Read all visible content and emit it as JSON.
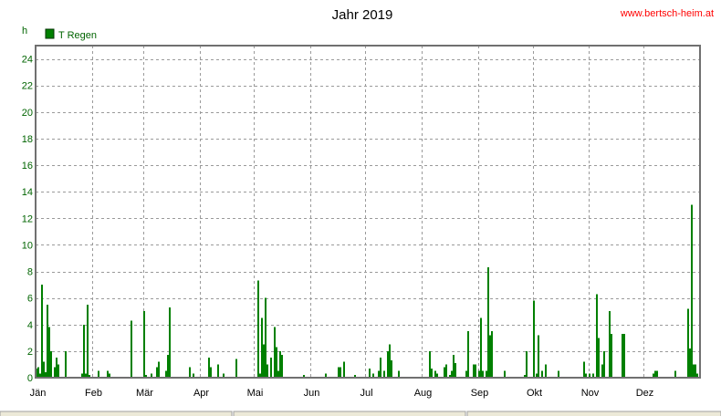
{
  "page": {
    "watermark": "www.bertsch-heim.at"
  },
  "chart_data": {
    "type": "bar",
    "title": "Jahr 2019",
    "ylabel": "h",
    "xlabel": "",
    "ylim": [
      0,
      25
    ],
    "yticks": [
      0,
      2,
      4,
      6,
      8,
      10,
      12,
      14,
      16,
      18,
      20,
      22,
      24
    ],
    "grid": true,
    "legend_position": "top-left",
    "x_unit": "day of year",
    "xlim": [
      1,
      365
    ],
    "months": [
      {
        "label": "Jän",
        "start_day": 1
      },
      {
        "label": "Feb",
        "start_day": 32
      },
      {
        "label": "Mär",
        "start_day": 60
      },
      {
        "label": "Apr",
        "start_day": 91
      },
      {
        "label": "Mai",
        "start_day": 121
      },
      {
        "label": "Jun",
        "start_day": 152
      },
      {
        "label": "Jul",
        "start_day": 182
      },
      {
        "label": "Aug",
        "start_day": 213
      },
      {
        "label": "Sep",
        "start_day": 244
      },
      {
        "label": "Okt",
        "start_day": 274
      },
      {
        "label": "Nov",
        "start_day": 305
      },
      {
        "label": "Dez",
        "start_day": 335
      }
    ],
    "colors": {
      "series": "#008000",
      "axis_text": "#006400",
      "frame": "#707070",
      "grid": "#9a9a9a"
    },
    "series": [
      {
        "name": "T Regen",
        "color": "#008000",
        "points": [
          [
            1,
            0.7
          ],
          [
            2,
            0.8
          ],
          [
            3,
            0.3
          ],
          [
            4,
            7.0
          ],
          [
            5,
            1.2
          ],
          [
            6,
            0.4
          ],
          [
            7,
            5.5
          ],
          [
            8,
            3.8
          ],
          [
            9,
            2.0
          ],
          [
            11,
            0.8
          ],
          [
            12,
            1.5
          ],
          [
            13,
            1.0
          ],
          [
            17,
            2.0
          ],
          [
            26,
            0.3
          ],
          [
            27,
            4.0
          ],
          [
            28,
            0.3
          ],
          [
            29,
            5.5
          ],
          [
            30,
            0.2
          ],
          [
            35,
            0.5
          ],
          [
            40,
            0.5
          ],
          [
            41,
            0.3
          ],
          [
            53,
            4.3
          ],
          [
            60,
            5.0
          ],
          [
            61,
            0.2
          ],
          [
            64,
            0.3
          ],
          [
            67,
            0.8
          ],
          [
            68,
            1.2
          ],
          [
            72,
            0.5
          ],
          [
            73,
            1.7
          ],
          [
            74,
            5.3
          ],
          [
            85,
            0.8
          ],
          [
            87,
            0.3
          ],
          [
            96,
            1.5
          ],
          [
            97,
            0.8
          ],
          [
            101,
            1.0
          ],
          [
            104,
            0.3
          ],
          [
            111,
            1.4
          ],
          [
            123,
            7.3
          ],
          [
            124,
            0.3
          ],
          [
            125,
            4.5
          ],
          [
            126,
            2.5
          ],
          [
            127,
            6.0
          ],
          [
            128,
            1.0
          ],
          [
            130,
            1.5
          ],
          [
            132,
            3.8
          ],
          [
            133,
            2.3
          ],
          [
            134,
            0.5
          ],
          [
            135,
            2.0
          ],
          [
            136,
            1.7
          ],
          [
            148,
            0.2
          ],
          [
            160,
            0.3
          ],
          [
            167,
            0.8
          ],
          [
            168,
            0.8
          ],
          [
            170,
            1.2
          ],
          [
            176,
            0.2
          ],
          [
            184,
            0.7
          ],
          [
            186,
            0.3
          ],
          [
            189,
            0.5
          ],
          [
            190,
            1.5
          ],
          [
            192,
            0.5
          ],
          [
            194,
            2.0
          ],
          [
            195,
            2.5
          ],
          [
            196,
            1.3
          ],
          [
            200,
            0.5
          ],
          [
            217,
            2.0
          ],
          [
            218,
            0.7
          ],
          [
            220,
            0.5
          ],
          [
            221,
            0.3
          ],
          [
            225,
            0.8
          ],
          [
            226,
            1.0
          ],
          [
            228,
            0.2
          ],
          [
            229,
            0.5
          ],
          [
            230,
            1.7
          ],
          [
            231,
            1.1
          ],
          [
            237,
            0.5
          ],
          [
            238,
            3.5
          ],
          [
            241,
            1.0
          ],
          [
            242,
            1.0
          ],
          [
            244,
            0.5
          ],
          [
            245,
            4.5
          ],
          [
            246,
            0.5
          ],
          [
            248,
            0.5
          ],
          [
            249,
            8.3
          ],
          [
            250,
            3.2
          ],
          [
            251,
            3.5
          ],
          [
            258,
            0.5
          ],
          [
            269,
            0.2
          ],
          [
            270,
            2.0
          ],
          [
            274,
            5.8
          ],
          [
            276,
            0.3
          ],
          [
            277,
            3.2
          ],
          [
            279,
            0.5
          ],
          [
            281,
            1.0
          ],
          [
            288,
            0.5
          ],
          [
            302,
            1.2
          ],
          [
            303,
            0.3
          ],
          [
            305,
            0.3
          ],
          [
            307,
            0.3
          ],
          [
            309,
            6.3
          ],
          [
            310,
            3.0
          ],
          [
            312,
            1.0
          ],
          [
            313,
            2.0
          ],
          [
            316,
            5.0
          ],
          [
            317,
            3.3
          ],
          [
            323,
            3.3
          ],
          [
            324,
            3.3
          ],
          [
            340,
            0.3
          ],
          [
            341,
            0.5
          ],
          [
            342,
            0.5
          ],
          [
            352,
            0.5
          ],
          [
            359,
            5.2
          ],
          [
            360,
            2.2
          ],
          [
            361,
            13.0
          ],
          [
            362,
            1.0
          ],
          [
            363,
            1.0
          ],
          [
            364,
            0.3
          ]
        ]
      }
    ]
  }
}
